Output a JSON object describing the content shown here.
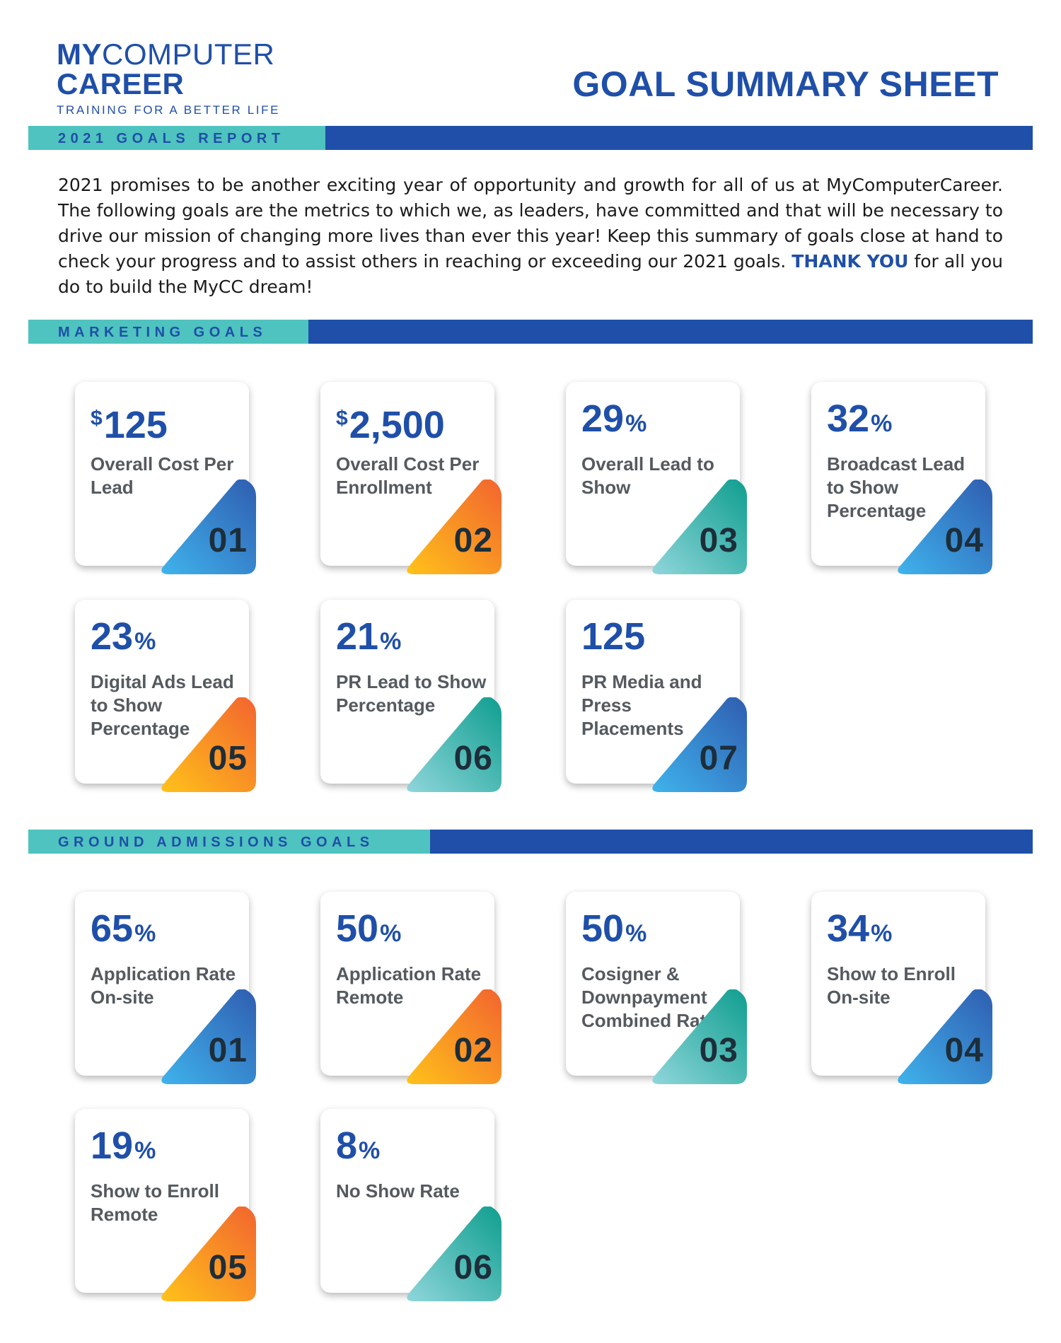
{
  "logo": {
    "line1_bold": "MY",
    "line1_thin": "COMPUTER",
    "line2": "CAREER",
    "tagline": "TRAINING FOR A BETTER LIFE"
  },
  "title": "GOAL SUMMARY SHEET",
  "sections": {
    "report": "2021 GOALS REPORT",
    "marketing": "MARKETING GOALS",
    "ground": "GROUND ADMISSIONS GOALS"
  },
  "intro": {
    "text": "2021 promises to be another exciting year of opportunity and growth for all of us at MyComputerCareer. The following goals are the metrics to which we, as leaders, have committed and that will be necessary to drive our mission of changing more lives than ever this year! Keep this summary of goals close at hand to check your progress and to assist others in reaching or exceeding our 2021 goals. ",
    "highlight": "THANK YOU",
    "closing": " for all you do to build the MyCC dream!"
  },
  "colors": {
    "brand_blue": "#1f4fa8",
    "teal_tab": "#4fc3bf",
    "gradients": {
      "blue": [
        "#3fb3ec",
        "#2f5db0"
      ],
      "orange": [
        "#ffc21a",
        "#f2642f"
      ],
      "teal": [
        "#8fd6db",
        "#0f9e8f"
      ]
    }
  },
  "marketing_goals": [
    {
      "prefix": "$",
      "value": "125",
      "suffix": "",
      "label": "Overall Cost Per Lead",
      "number": "01",
      "color": "blue"
    },
    {
      "prefix": "$",
      "value": "2,500",
      "suffix": "",
      "label": "Overall Cost Per Enrollment",
      "number": "02",
      "color": "orange"
    },
    {
      "prefix": "",
      "value": "29",
      "suffix": "%",
      "label": "Overall Lead to Show",
      "number": "03",
      "color": "teal"
    },
    {
      "prefix": "",
      "value": "32",
      "suffix": "%",
      "label": "Broadcast Lead to Show Percentage",
      "number": "04",
      "color": "blue"
    },
    {
      "prefix": "",
      "value": "23",
      "suffix": "%",
      "label": "Digital Ads Lead to Show Percentage",
      "number": "05",
      "color": "orange"
    },
    {
      "prefix": "",
      "value": "21",
      "suffix": "%",
      "label": "PR Lead to Show Percentage",
      "number": "06",
      "color": "teal"
    },
    {
      "prefix": "",
      "value": "125",
      "suffix": "",
      "label": "PR Media and Press Placements",
      "number": "07",
      "color": "blue"
    }
  ],
  "ground_goals": [
    {
      "prefix": "",
      "value": "65",
      "suffix": "%",
      "label": "Application Rate On-site",
      "number": "01",
      "color": "blue"
    },
    {
      "prefix": "",
      "value": "50",
      "suffix": "%",
      "label": "Application Rate Remote",
      "number": "02",
      "color": "orange"
    },
    {
      "prefix": "",
      "value": "50",
      "suffix": "%",
      "label": "Cosigner & Downpayment Combined Rate",
      "number": "03",
      "color": "teal"
    },
    {
      "prefix": "",
      "value": "34",
      "suffix": "%",
      "label": "Show to Enroll On-site",
      "number": "04",
      "color": "blue"
    },
    {
      "prefix": "",
      "value": "19",
      "suffix": "%",
      "label": "Show to Enroll Remote",
      "number": "05",
      "color": "orange"
    },
    {
      "prefix": "",
      "value": "8",
      "suffix": "%",
      "label": "No Show Rate",
      "number": "06",
      "color": "teal"
    }
  ]
}
